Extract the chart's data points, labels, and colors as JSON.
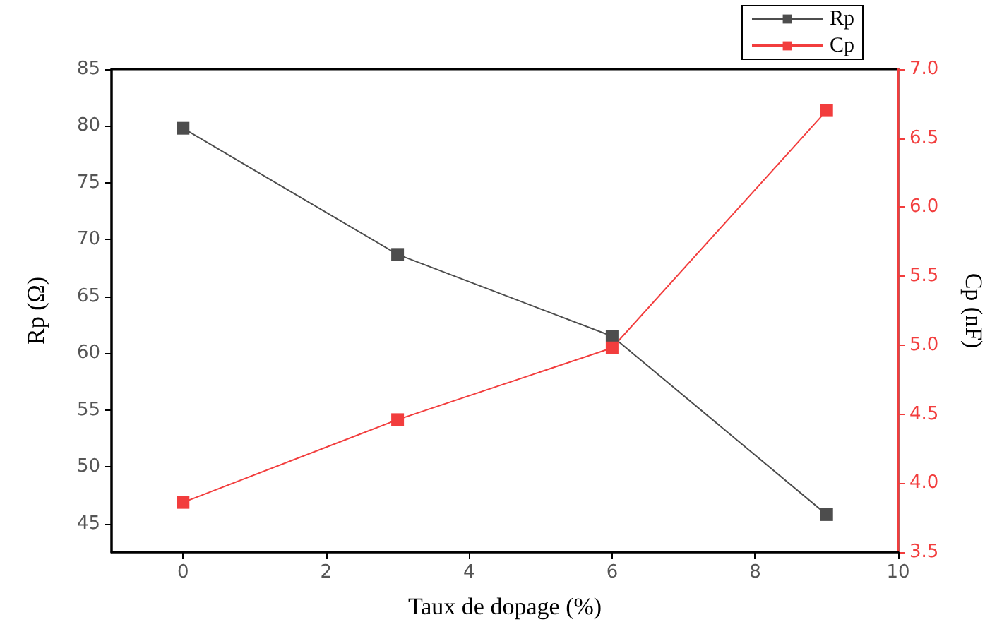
{
  "chart_data": {
    "type": "line",
    "xlabel": "Taux de dopage (%)",
    "ylabel": "Rp (Ω)",
    "y2label": "Cp (nF)",
    "x": [
      0,
      3,
      6,
      9
    ],
    "series": [
      {
        "name": "Rp",
        "color": "#4d4d4d",
        "values": [
          79.8,
          68.7,
          61.5,
          45.8
        ]
      },
      {
        "name": "Cp",
        "color": "#f23d3d",
        "values": [
          3.86,
          4.46,
          4.98,
          6.7
        ],
        "axis": "y2"
      }
    ],
    "xlim": [
      -1,
      10
    ],
    "xticks": [
      0,
      2,
      4,
      6,
      8,
      10
    ],
    "ylim": [
      42.5,
      85
    ],
    "yticks": [
      45,
      50,
      55,
      60,
      65,
      70,
      75,
      80,
      85
    ],
    "y2lim": [
      3.5,
      7
    ],
    "y2ticks": [
      {
        "value": 3.5,
        "label": "3.5"
      },
      {
        "value": 4,
        "label": "4.0"
      },
      {
        "value": 4.5,
        "label": "4.5"
      },
      {
        "value": 5,
        "label": "5.0"
      },
      {
        "value": 5.5,
        "label": "5.5"
      },
      {
        "value": 6,
        "label": "6.0"
      },
      {
        "value": 6.5,
        "label": "6.5"
      },
      {
        "value": 7,
        "label": "7.0"
      }
    ],
    "grid": false,
    "legend": "top right",
    "marker": "square",
    "line_style": "solid"
  }
}
